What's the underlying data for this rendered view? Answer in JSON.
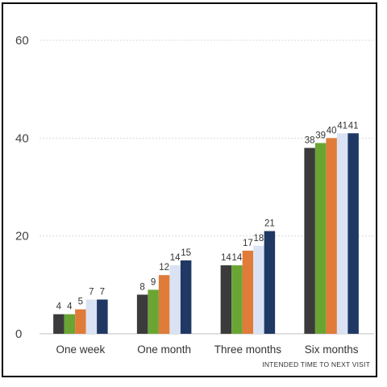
{
  "chart_data": {
    "type": "bar",
    "categories": [
      "One week",
      "One month",
      "Three months",
      "Six months"
    ],
    "series": [
      {
        "values": [
          4,
          8,
          14,
          38
        ],
        "color": "#3b3b3d"
      },
      {
        "values": [
          4,
          9,
          14,
          39
        ],
        "color": "#6aa534"
      },
      {
        "values": [
          5,
          12,
          17,
          40
        ],
        "color": "#e07b39"
      },
      {
        "values": [
          7,
          14,
          18,
          41
        ],
        "color": "#dae3f3"
      },
      {
        "values": [
          7,
          15,
          21,
          41
        ],
        "color": "#203864"
      }
    ],
    "ylim": [
      0,
      60
    ],
    "yticks": [
      "0",
      "20",
      "40",
      "60"
    ],
    "xlabel": "INTENDED TIME TO NEXT VISIT",
    "grid": true,
    "data_labels": true
  }
}
